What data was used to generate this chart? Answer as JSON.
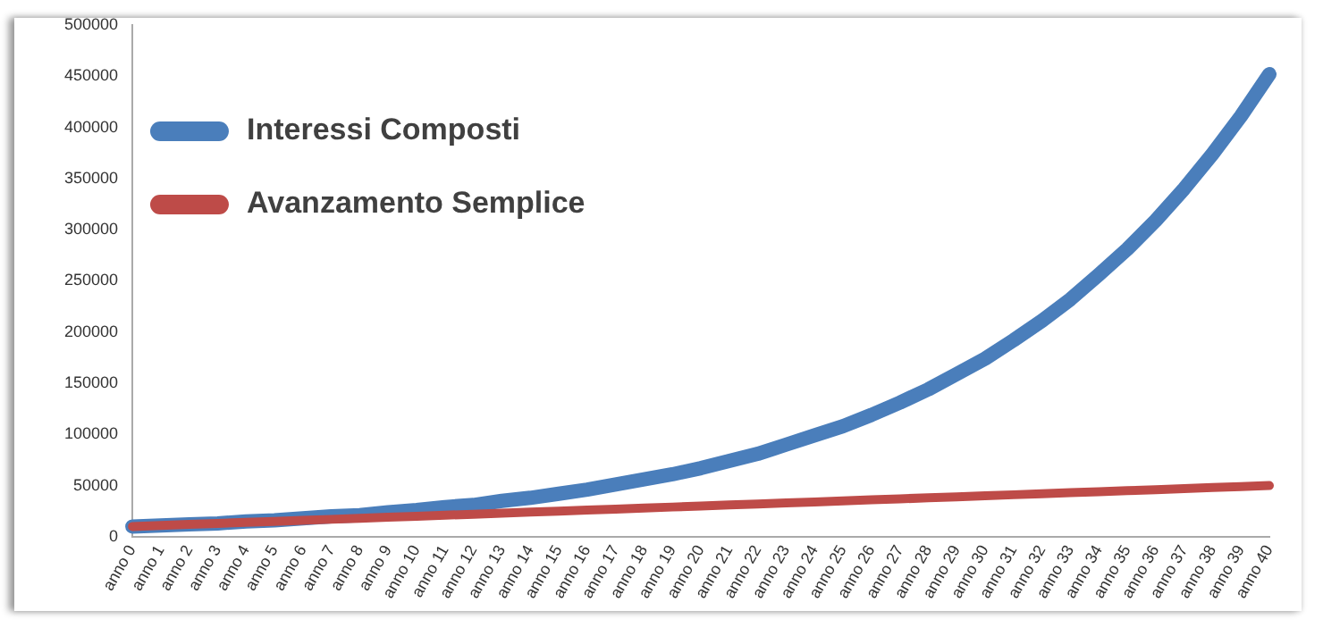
{
  "chart_data": {
    "type": "line",
    "categories": [
      "anno 0",
      "anno 1",
      "anno 2",
      "anno 3",
      "anno 4",
      "anno 5",
      "anno 6",
      "anno 7",
      "anno 8",
      "anno 9",
      "anno 10",
      "anno 11",
      "anno 12",
      "anno 13",
      "anno 14",
      "anno 15",
      "anno 16",
      "anno 17",
      "anno 18",
      "anno 19",
      "anno 20",
      "anno 21",
      "anno 22",
      "anno 23",
      "anno 24",
      "anno 25",
      "anno 26",
      "anno 27",
      "anno 28",
      "anno 29",
      "anno 30",
      "anno 31",
      "anno 32",
      "anno 33",
      "anno 34",
      "anno 35",
      "anno 36",
      "anno 37",
      "anno 38",
      "anno 39",
      "anno 40"
    ],
    "series": [
      {
        "name": "Interessi Composti",
        "color": "#4a7ebb",
        "values": [
          10000,
          11000,
          12000,
          13000,
          15000,
          16000,
          18000,
          20000,
          21000,
          24000,
          26000,
          29000,
          31000,
          35000,
          38000,
          42000,
          46000,
          51000,
          56000,
          61000,
          67000,
          74000,
          81000,
          90000,
          99000,
          108000,
          119000,
          131000,
          144000,
          159000,
          174000,
          192000,
          211000,
          232000,
          256000,
          281000,
          309000,
          340000,
          374000,
          411000,
          452000
        ]
      },
      {
        "name": "Avanzamento Semplice",
        "color": "#be4b48",
        "values": [
          10000,
          11000,
          12000,
          13000,
          14000,
          15000,
          16000,
          17000,
          18000,
          19000,
          20000,
          21000,
          22000,
          23000,
          24000,
          25000,
          26000,
          27000,
          28000,
          29000,
          30000,
          31000,
          32000,
          33000,
          34000,
          35000,
          36000,
          37000,
          38000,
          39000,
          40000,
          41000,
          42000,
          43000,
          44000,
          45000,
          46000,
          47000,
          48000,
          49000,
          50000
        ]
      }
    ],
    "ylim": [
      0,
      500000
    ],
    "yticks": [
      0,
      50000,
      100000,
      150000,
      200000,
      250000,
      300000,
      350000,
      400000,
      450000,
      500000
    ],
    "grid": false,
    "legend": "top left",
    "marker": "none",
    "line_style": "solid"
  }
}
